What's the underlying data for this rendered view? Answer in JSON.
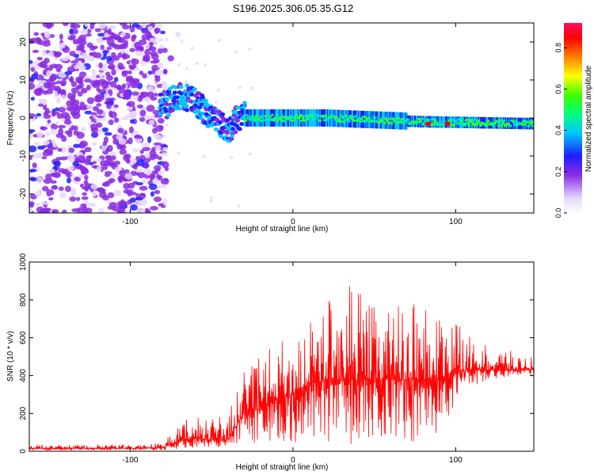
{
  "figure_title": "S196.2025.306.05.35.G12",
  "chart_data": [
    {
      "type": "heatmap",
      "title": "S196.2025.306.05.35.G12",
      "xlabel": "Height of straight line (km)",
      "ylabel": "Frequency (Hz)",
      "xlim": [
        -162,
        148
      ],
      "ylim": [
        -25,
        25
      ],
      "xticks": [
        -100,
        0,
        100
      ],
      "yticks": [
        -20,
        -10,
        0,
        10,
        20
      ],
      "colorbar": {
        "label": "Normalized spectral amplitude",
        "range": [
          0.0,
          0.92
        ],
        "ticks": [
          0.0,
          0.2,
          0.4,
          0.6,
          0.8
        ]
      },
      "features": [
        {
          "name": "background noise",
          "x_range": [
            -162,
            -78
          ],
          "freq_range": [
            -25,
            25
          ],
          "amplitude": "0.05-0.2"
        },
        {
          "name": "signal onset (Doppler ramp)",
          "x": [
            -80,
            -70,
            -60,
            -50,
            -40,
            -30
          ],
          "freq": [
            3,
            6,
            4,
            0,
            -3,
            2
          ],
          "amplitude": "0.2-0.4"
        },
        {
          "name": "main carrier line",
          "x_range": [
            -30,
            148
          ],
          "freq": [
            0,
            0,
            -1,
            -1.5
          ],
          "amplitude": "0.3-0.6"
        },
        {
          "name": "peak amplitude spots",
          "x": [
            83,
            95
          ],
          "freq": [
            -1.5,
            -1.5
          ],
          "amplitude": "0.9"
        }
      ]
    },
    {
      "type": "line",
      "xlabel": "Height of straight line (km)",
      "ylabel": "SNR (10 * v/v)",
      "xlim": [
        -162,
        148
      ],
      "ylim": [
        0,
        1000
      ],
      "xticks": [
        -100,
        0,
        100
      ],
      "yticks": [
        0,
        200,
        400,
        600,
        800,
        1000
      ],
      "color": "#ff0000",
      "envelope": {
        "x": [
          -162,
          -100,
          -80,
          -70,
          -60,
          -50,
          -40,
          -30,
          -20,
          -10,
          0,
          10,
          20,
          30,
          40,
          50,
          60,
          70,
          80,
          90,
          100,
          110,
          120,
          130,
          140,
          148
        ],
        "baseline": [
          15,
          15,
          20,
          50,
          70,
          60,
          60,
          200,
          230,
          280,
          300,
          350,
          380,
          380,
          380,
          380,
          380,
          380,
          380,
          380,
          420,
          430,
          430,
          430,
          430,
          430
        ],
        "upper_peaks": [
          35,
          35,
          45,
          140,
          200,
          180,
          200,
          420,
          500,
          580,
          620,
          680,
          800,
          950,
          880,
          800,
          760,
          850,
          820,
          720,
          680,
          600,
          560,
          540,
          520,
          500
        ],
        "lower_dips": [
          5,
          5,
          5,
          10,
          20,
          20,
          30,
          50,
          30,
          50,
          40,
          50,
          40,
          30,
          40,
          50,
          60,
          40,
          60,
          80,
          260,
          340,
          380,
          390,
          400,
          400
        ]
      }
    }
  ]
}
